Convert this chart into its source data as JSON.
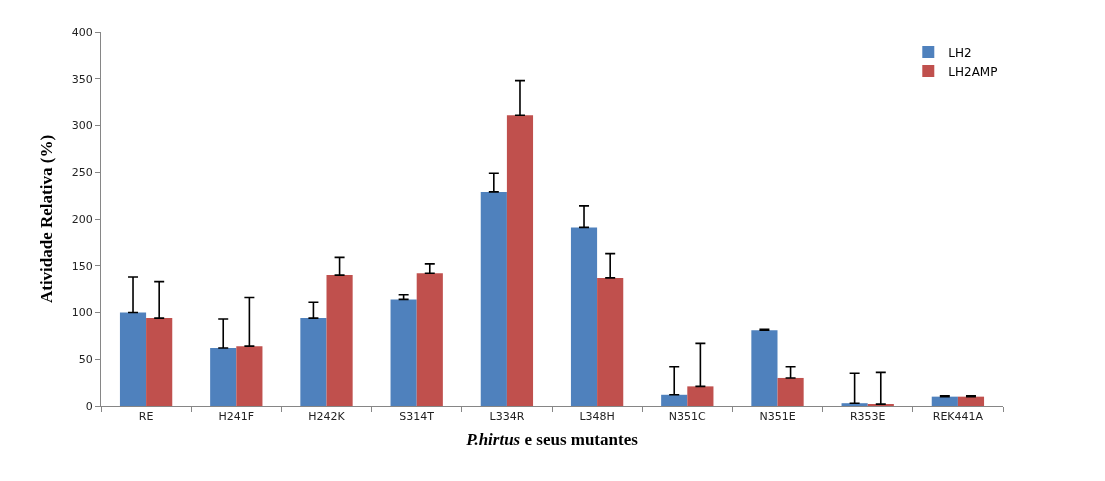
{
  "chart_data": {
    "type": "bar",
    "xlabel": "P.hirtus e seus mutantes",
    "ylabel": "Atividade Relativa (%)",
    "categories": [
      "RE",
      "H241F",
      "H242K",
      "S314T",
      "L334R",
      "L348H",
      "N351C",
      "N351E",
      "R353E",
      "REK441A"
    ],
    "series": [
      {
        "name": "LH2",
        "color": "#4f81bd",
        "values": [
          100,
          62,
          94,
          114,
          229,
          191,
          12,
          81,
          3,
          10
        ],
        "errors": [
          [
            100,
            138
          ],
          [
            62,
            93
          ],
          [
            94,
            111
          ],
          [
            114,
            119
          ],
          [
            229,
            249
          ],
          [
            191,
            214
          ],
          [
            12,
            42
          ],
          [
            81,
            82
          ],
          [
            3,
            35
          ],
          [
            10,
            11
          ]
        ]
      },
      {
        "name": "LH2AMP",
        "color": "#c0504d",
        "values": [
          94,
          64,
          140,
          142,
          311,
          137,
          21,
          30,
          2,
          10
        ],
        "errors": [
          [
            94,
            133
          ],
          [
            64,
            116
          ],
          [
            140,
            159
          ],
          [
            142,
            152
          ],
          [
            311,
            348
          ],
          [
            137,
            163
          ],
          [
            21,
            67
          ],
          [
            30,
            42
          ],
          [
            2,
            36
          ],
          [
            10,
            11
          ]
        ]
      }
    ],
    "ylim": [
      0,
      400
    ],
    "yticks": [
      0,
      50,
      100,
      150,
      200,
      250,
      300,
      350,
      400
    ],
    "legend": "top right"
  }
}
